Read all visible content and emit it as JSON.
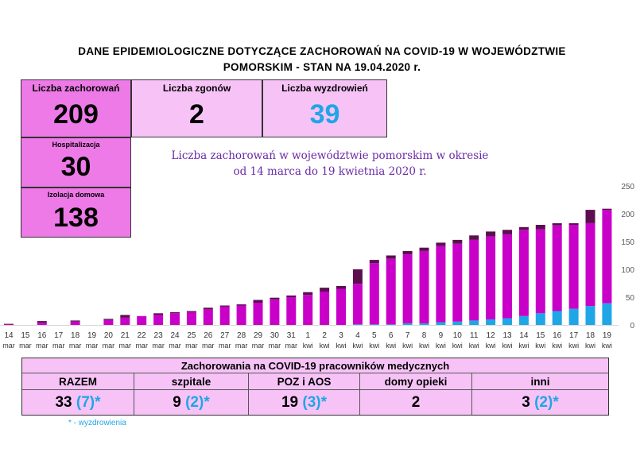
{
  "header": {
    "title_line1": "DANE EPIDEMIOLOGICZNE DOTYCZĄCE ZACHOROWAŃ NA COVID-19 W WOJEWÓDZTWIE",
    "title_line2": "POMORSKIM - STAN NA 19.04.2020 r."
  },
  "stats": {
    "cases_label": "Liczba zachorowań",
    "cases_value": "209",
    "deaths_label": "Liczba zgonów",
    "deaths_value": "2",
    "recovered_label": "Liczba wyzdrowień",
    "recovered_value": "39",
    "hosp_label": "Hospitalizacja",
    "hosp_value": "30",
    "home_label": "Izolacja domowa",
    "home_value": "138"
  },
  "colors": {
    "magenta": "#c800c8",
    "dark_purple": "#5c0f4f",
    "cyan": "#1fa6e6",
    "pink_light": "#f7c3f7",
    "pink_dark": "#ee7ae8",
    "subtitle": "#6a2aa8"
  },
  "chart_data": {
    "type": "bar",
    "title_line1": "Liczba zachorowań w województwie pomorskim w okresie",
    "title_line2": "od 14 marca do 19 kwietnia 2020 r.",
    "ylim": [
      0,
      250
    ],
    "yticks": [
      0,
      50,
      100,
      150,
      200,
      250
    ],
    "grid": false,
    "days": [
      "14",
      "15",
      "16",
      "17",
      "18",
      "19",
      "20",
      "21",
      "22",
      "23",
      "24",
      "25",
      "26",
      "27",
      "28",
      "29",
      "30",
      "31",
      "1",
      "2",
      "3",
      "4",
      "5",
      "6",
      "7",
      "8",
      "9",
      "10",
      "11",
      "12",
      "13",
      "14",
      "15",
      "16",
      "17",
      "18",
      "19"
    ],
    "months": [
      "mar",
      "mar",
      "mar",
      "mar",
      "mar",
      "mar",
      "mar",
      "mar",
      "mar",
      "mar",
      "mar",
      "mar",
      "mar",
      "mar",
      "mar",
      "mar",
      "mar",
      "mar",
      "kwi",
      "kwi",
      "kwi",
      "kwi",
      "kwi",
      "kwi",
      "kwi",
      "kwi",
      "kwi",
      "kwi",
      "kwi",
      "kwi",
      "kwi",
      "kwi",
      "kwi",
      "kwi",
      "kwi",
      "kwi",
      "kwi"
    ],
    "series": [
      {
        "color": "#1fa6e6",
        "values": [
          0,
          0,
          0,
          0,
          0,
          0,
          0,
          0,
          0,
          0,
          0,
          0,
          0,
          0,
          0,
          0,
          0,
          0,
          0,
          0,
          0,
          1,
          1,
          1,
          3,
          3,
          5,
          6,
          8,
          10,
          12,
          16,
          21,
          25,
          29,
          34,
          39
        ]
      },
      {
        "color": "#c800c8",
        "values": [
          1,
          0,
          4,
          0,
          6,
          0,
          9,
          13,
          16,
          18,
          21,
          23,
          28,
          33,
          35,
          40,
          46,
          50,
          54,
          60,
          65,
          73,
          110,
          118,
          124,
          130,
          137,
          140,
          145,
          149,
          151,
          155,
          151,
          154,
          151,
          149,
          168
        ]
      },
      {
        "color": "#5c0f4f",
        "values": [
          1,
          0,
          3,
          0,
          2,
          0,
          2,
          5,
          0,
          3,
          2,
          2,
          3,
          2,
          2,
          5,
          3,
          3,
          5,
          7,
          5,
          26,
          6,
          6,
          6,
          6,
          6,
          7,
          8,
          9,
          8,
          5,
          8,
          4,
          3,
          24,
          2
        ]
      }
    ],
    "totals": [
      2,
      0,
      7,
      0,
      8,
      0,
      11,
      18,
      16,
      21,
      23,
      25,
      31,
      35,
      37,
      45,
      49,
      53,
      59,
      67,
      70,
      100,
      117,
      125,
      133,
      139,
      148,
      153,
      161,
      168,
      171,
      176,
      180,
      183,
      183,
      207,
      209
    ]
  },
  "medical": {
    "title": "Zachorowania na COVID-19 pracowników medycznych",
    "headers": [
      "RAZEM",
      "szpitale",
      "POZ i AOS",
      "domy opieki",
      "inni"
    ],
    "values": [
      {
        "main": "33",
        "rec": "(7)*"
      },
      {
        "main": "9",
        "rec": "(2)*"
      },
      {
        "main": "19",
        "rec": "(3)*"
      },
      {
        "main": "2",
        "rec": ""
      },
      {
        "main": "3",
        "rec": "(2)*"
      }
    ],
    "footnote": "*  - wyzdrowienia"
  }
}
